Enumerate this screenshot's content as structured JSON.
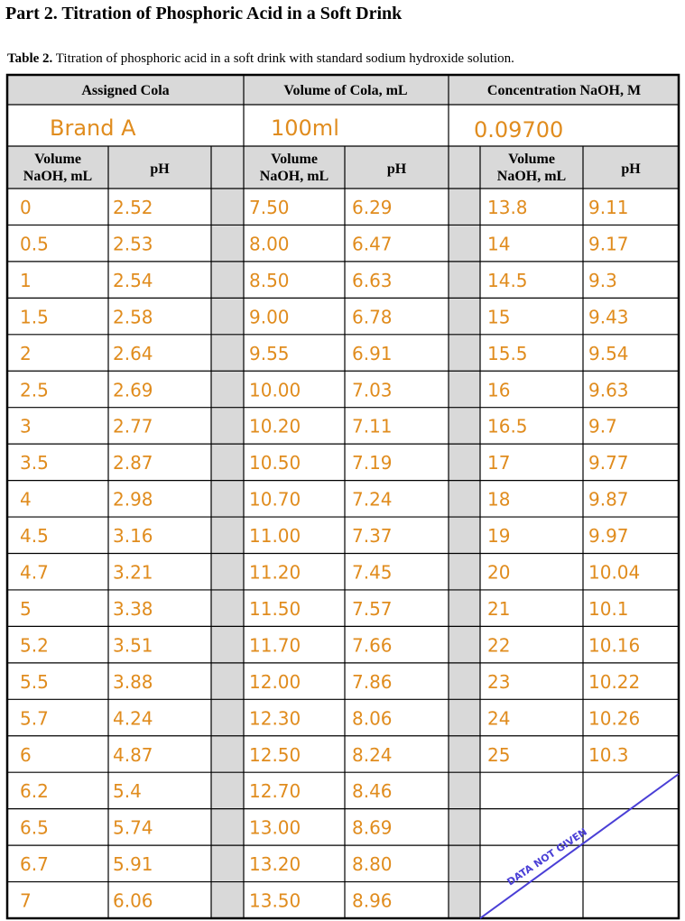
{
  "part_title": "Part 2.  Titration of Phosphoric Acid in a Soft Drink",
  "caption": {
    "label": "Table 2.",
    "text": "Titration of phosphoric acid in a soft drink with standard sodium hydroxide solution."
  },
  "headers": {
    "assigned_cola": "Assigned Cola",
    "volume_cola": "Volume of Cola, mL",
    "conc_naoh": "Concentration NaOH, M",
    "vol_naoh_line1": "Volume",
    "vol_naoh_line2": "NaOH, mL",
    "ph": "pH"
  },
  "values": {
    "assigned_cola": "Brand A",
    "volume_cola": "100ml",
    "conc_naoh": "0.09700"
  },
  "col1": [
    [
      "0",
      "2.52"
    ],
    [
      "0.5",
      "2.53"
    ],
    [
      "1",
      "2.54"
    ],
    [
      "1.5",
      "2.58"
    ],
    [
      "2",
      "2.64"
    ],
    [
      "2.5",
      "2.69"
    ],
    [
      "3",
      "2.77"
    ],
    [
      "3.5",
      "2.87"
    ],
    [
      "4",
      "2.98"
    ],
    [
      "4.5",
      "3.16"
    ],
    [
      "4.7",
      "3.21"
    ],
    [
      "5",
      "3.38"
    ],
    [
      "5.2",
      "3.51"
    ],
    [
      "5.5",
      "3.88"
    ],
    [
      "5.7",
      "4.24"
    ],
    [
      "6",
      "4.87"
    ],
    [
      "6.2",
      "5.4"
    ],
    [
      "6.5",
      "5.74"
    ],
    [
      "6.7",
      "5.91"
    ],
    [
      "7",
      "6.06"
    ]
  ],
  "col2": [
    [
      "7.50",
      "6.29"
    ],
    [
      "8.00",
      "6.47"
    ],
    [
      "8.50",
      "6.63"
    ],
    [
      "9.00",
      "6.78"
    ],
    [
      "9.55",
      "6.91"
    ],
    [
      "10.00",
      "7.03"
    ],
    [
      "10.20",
      "7.11"
    ],
    [
      "10.50",
      "7.19"
    ],
    [
      "10.70",
      "7.24"
    ],
    [
      "11.00",
      "7.37"
    ],
    [
      "11.20",
      "7.45"
    ],
    [
      "11.50",
      "7.57"
    ],
    [
      "11.70",
      "7.66"
    ],
    [
      "12.00",
      "7.86"
    ],
    [
      "12.30",
      "8.06"
    ],
    [
      "12.50",
      "8.24"
    ],
    [
      "12.70",
      "8.46"
    ],
    [
      "13.00",
      "8.69"
    ],
    [
      "13.20",
      "8.80"
    ],
    [
      "13.50",
      "8.96"
    ]
  ],
  "col3": [
    [
      "13.8",
      "9.11"
    ],
    [
      "14",
      "9.17"
    ],
    [
      "14.5",
      "9.3"
    ],
    [
      "15",
      "9.43"
    ],
    [
      "15.5",
      "9.54"
    ],
    [
      "16",
      "9.63"
    ],
    [
      "16.5",
      "9.7"
    ],
    [
      "17",
      "9.77"
    ],
    [
      "18",
      "9.87"
    ],
    [
      "19",
      "9.97"
    ],
    [
      "20",
      "10.04"
    ],
    [
      "21",
      "10.1"
    ],
    [
      "22",
      "10.16"
    ],
    [
      "23",
      "10.22"
    ],
    [
      "24",
      "10.26"
    ],
    [
      "25",
      "10.3"
    ]
  ],
  "note": "DATA NOT GIVEN",
  "colors": {
    "ink": "#e08c1e",
    "note_ink": "#4a3fd6",
    "spacer_fill": "#d9d9d9",
    "header_fill": "#d9d9d9"
  }
}
